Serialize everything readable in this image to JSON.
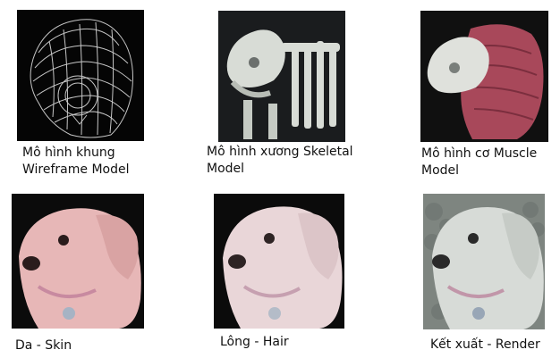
{
  "stages": [
    {
      "id": "wireframe",
      "line1": "Mô hình khung",
      "line2": "Wireframe Model"
    },
    {
      "id": "skeletal",
      "line1": "Mô hình xương Skeletal",
      "line2": "Model"
    },
    {
      "id": "muscle",
      "line1": "Mô hình cơ Muscle",
      "line2": "Model"
    },
    {
      "id": "skin",
      "line1": "Da - Skin",
      "line2": ""
    },
    {
      "id": "hair",
      "line1": "Lông - Hair",
      "line2": ""
    },
    {
      "id": "render",
      "line1": "Kết xuất - Render",
      "line2": ""
    }
  ],
  "colors": {
    "wireframe": "#e8e8e8",
    "bone": "#d8dcd6",
    "muscle": "#a8485a",
    "skin": "#e7b7b7",
    "hair": "#e9d6d8",
    "render": "#d7dbd7"
  }
}
